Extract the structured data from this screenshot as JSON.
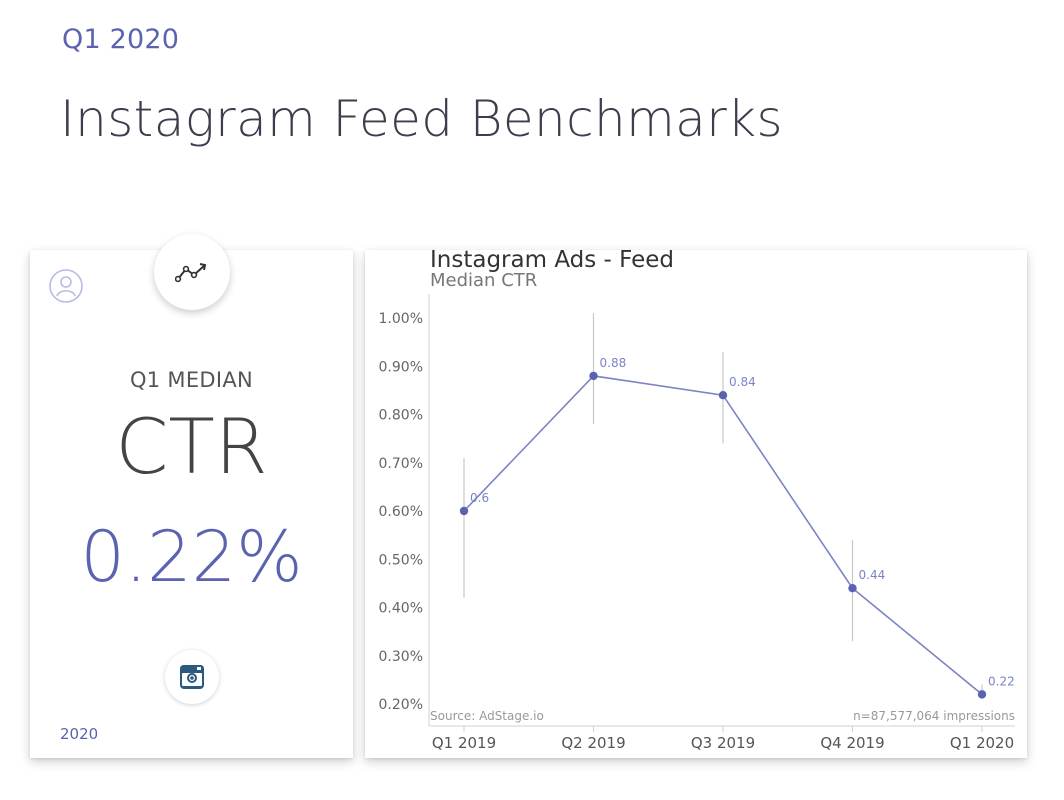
{
  "header": {
    "eyebrow": "Q1 2020",
    "title": "Instagram Feed Benchmarks"
  },
  "summary_card": {
    "median_label": "Q1 MEDIAN",
    "metric": "CTR",
    "value": "0.22%",
    "year": "2020",
    "icons": [
      "trend-icon",
      "user-icon",
      "instagram-icon"
    ]
  },
  "colors": {
    "accent": "#5b63b0",
    "line": "#7b84c4",
    "point": "#5b63b0",
    "error_bar": "#c8c8c8"
  },
  "chart_data": {
    "type": "line",
    "title": "Instagram Ads - Feed",
    "subtitle": "Median CTR",
    "categories": [
      "Q1 2019",
      "Q2 2019",
      "Q3 2019",
      "Q4 2019",
      "Q1 2020"
    ],
    "series": [
      {
        "values": [
          0.6,
          0.88,
          0.84,
          0.44,
          0.22
        ],
        "labels": [
          "0.6",
          "0.88",
          "0.84",
          "0.44",
          "0.22"
        ],
        "error_low": [
          0.42,
          0.78,
          0.74,
          0.33,
          0.21
        ],
        "error_high": [
          0.71,
          1.01,
          0.93,
          0.54,
          0.24
        ]
      }
    ],
    "y_ticks": [
      "1.00%",
      "0.90%",
      "0.80%",
      "0.70%",
      "0.60%",
      "0.50%",
      "0.40%",
      "0.30%",
      "0.20%"
    ],
    "ylim": [
      0.2,
      1.0
    ],
    "grid": false,
    "source": "Source: AdStage.io",
    "note": "n=87,577,064 impressions"
  }
}
